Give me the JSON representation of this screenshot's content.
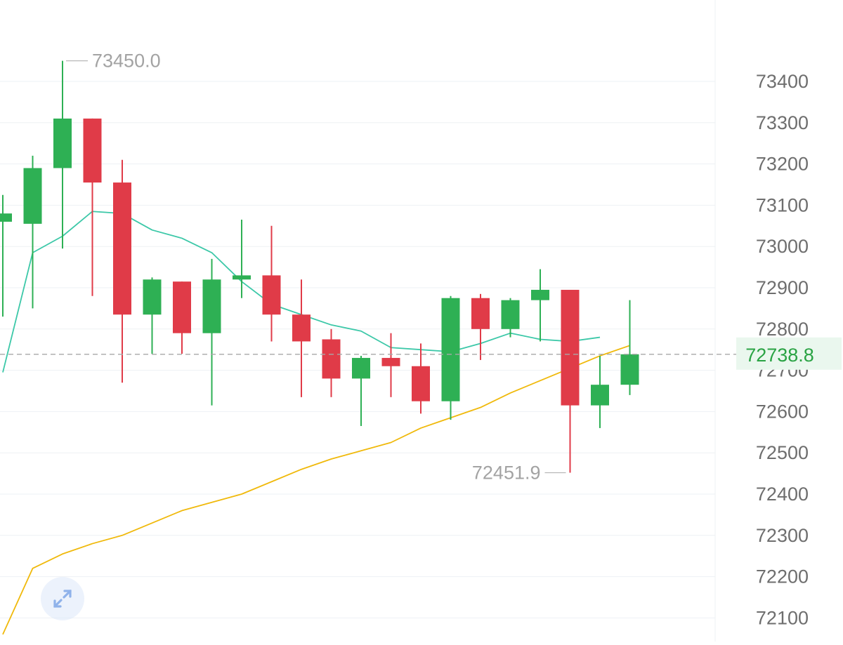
{
  "chart_data": {
    "type": "candlestick",
    "y_axis": {
      "ticks": [
        73400,
        73300,
        73200,
        73100,
        73000,
        72900,
        72800,
        72700,
        72600,
        72500,
        72400,
        72300,
        72200,
        72100
      ],
      "range": [
        72060,
        73510
      ]
    },
    "current_price": {
      "value": 72738.8,
      "label": "72738.8",
      "color": "#2aa344"
    },
    "annotations": [
      {
        "label": "73450.0",
        "value": 73450.0
      },
      {
        "label": "72451.9",
        "value": 72451.9
      }
    ],
    "candles": [
      {
        "open": 73060,
        "high": 73125,
        "low": 72830,
        "close": 73080
      },
      {
        "open": 73055,
        "high": 73220,
        "low": 72850,
        "close": 73190
      },
      {
        "open": 73190,
        "high": 73450,
        "low": 72995,
        "close": 73310
      },
      {
        "open": 73310,
        "high": 73310,
        "low": 72880,
        "close": 73155
      },
      {
        "open": 73155,
        "high": 73210,
        "low": 72670,
        "close": 72835
      },
      {
        "open": 72835,
        "high": 72925,
        "low": 72740,
        "close": 72920
      },
      {
        "open": 72915,
        "high": 72915,
        "low": 72740,
        "close": 72790
      },
      {
        "open": 72790,
        "high": 72970,
        "low": 72615,
        "close": 72920
      },
      {
        "open": 72920,
        "high": 73065,
        "low": 72875,
        "close": 72930
      },
      {
        "open": 72930,
        "high": 73050,
        "low": 72770,
        "close": 72835
      },
      {
        "open": 72835,
        "high": 72920,
        "low": 72635,
        "close": 72770
      },
      {
        "open": 72775,
        "high": 72800,
        "low": 72635,
        "close": 72680
      },
      {
        "open": 72680,
        "high": 72735,
        "low": 72565,
        "close": 72730
      },
      {
        "open": 72730,
        "high": 72790,
        "low": 72635,
        "close": 72710
      },
      {
        "open": 72710,
        "high": 72765,
        "low": 72595,
        "close": 72625
      },
      {
        "open": 72625,
        "high": 72880,
        "low": 72580,
        "close": 72875
      },
      {
        "open": 72875,
        "high": 72885,
        "low": 72725,
        "close": 72800
      },
      {
        "open": 72800,
        "high": 72875,
        "low": 72780,
        "close": 72870
      },
      {
        "open": 72870,
        "high": 72945,
        "low": 72770,
        "close": 72895
      },
      {
        "open": 72895,
        "high": 72895,
        "low": 72451.9,
        "close": 72615
      },
      {
        "open": 72615,
        "high": 72735,
        "low": 72560,
        "close": 72665
      },
      {
        "open": 72665,
        "high": 72870,
        "low": 72640,
        "close": 72738.8
      }
    ],
    "series": [
      {
        "type": "line",
        "color": "#3cc8a8",
        "values": [
          72695,
          72985,
          73025,
          73085,
          73080,
          73040,
          73020,
          72985,
          72915,
          72860,
          72835,
          72810,
          72795,
          72755,
          72750,
          72745,
          72765,
          72790,
          72775,
          72770,
          72780
        ]
      },
      {
        "type": "line",
        "color": "#f0b90b",
        "values": [
          72060,
          72220,
          72255,
          72280,
          72300,
          72330,
          72360,
          72380,
          72400,
          72430,
          72460,
          72485,
          72505,
          72525,
          72560,
          72585,
          72610,
          72645,
          72675,
          72705,
          72735,
          72760
        ]
      }
    ],
    "colors": {
      "up": "#2eb054",
      "down": "#e03b48",
      "grid": "#eef1f4",
      "axis_text": "#6e6e6e",
      "annotation_text": "#a3a3a3"
    }
  },
  "controls": {
    "expand_icon": "expand-arrows-icon"
  }
}
